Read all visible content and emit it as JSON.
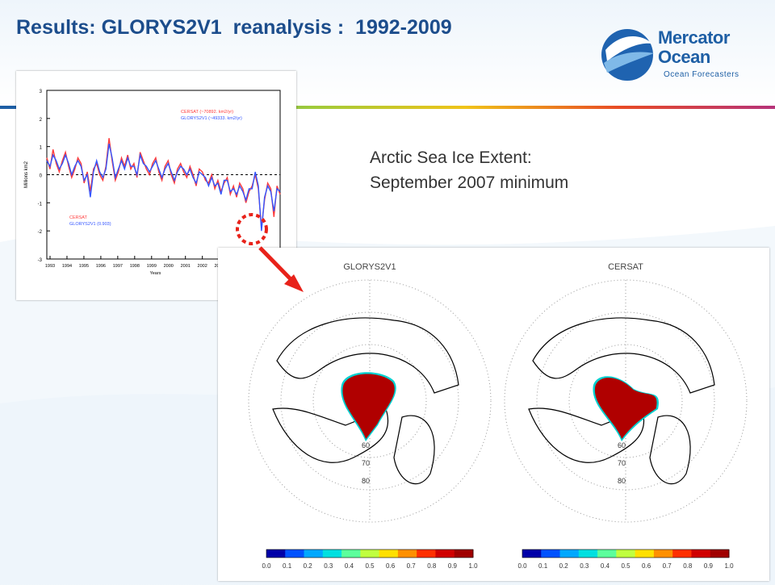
{
  "slide": {
    "title": "Results: GLORYS2V1  reanalysis :  1992-2009",
    "caption_line1": "Arctic Sea Ice Extent:",
    "caption_line2": "September 2007 minimum"
  },
  "logo": {
    "line1": "Mercator",
    "line2": "Ocean",
    "tagline": "Ocean Forecasters"
  },
  "chart_data": [
    {
      "type": "line",
      "ylabel": "Millions km2",
      "xlabel": "Years",
      "ylim": [
        -3,
        3
      ],
      "yticks": [
        -3,
        -2,
        -1,
        0,
        1,
        2,
        3
      ],
      "xticks": [
        "1993",
        "1994",
        "1995",
        "1996",
        "1997",
        "1998",
        "1999",
        "2000",
        "2001",
        "2002",
        "2003",
        "2004",
        "2005",
        "200"
      ],
      "legend_top": [
        "CERSAT (~70892. km2/yr)",
        "GLORYS2V1 (~49333. km2/yr)"
      ],
      "legend_bottom": [
        "CERSAT",
        "GLORYS2V1 (0.903)"
      ],
      "series": [
        {
          "name": "CERSAT",
          "color": "#ff3b3b",
          "values": [
            0.6,
            0.2,
            0.9,
            0.4,
            0.1,
            0.5,
            0.8,
            0.3,
            -0.1,
            0.2,
            0.6,
            0.4,
            -0.3,
            0.1,
            -0.6,
            0.2,
            0.4,
            0.0,
            -0.2,
            0.3,
            1.3,
            0.5,
            -0.2,
            0.1,
            0.6,
            0.3,
            0.7,
            0.2,
            0.4,
            -0.1,
            0.8,
            0.5,
            0.2,
            0.0,
            0.4,
            0.6,
            0.1,
            -0.2,
            0.3,
            0.5,
            0.0,
            -0.3,
            0.2,
            0.4,
            0.1,
            -0.1,
            0.3,
            0.0,
            -0.4,
            0.2,
            0.1,
            -0.2,
            -0.3,
            0.0,
            -0.5,
            -0.2,
            -0.6,
            -0.3,
            -0.1,
            -0.7,
            -0.4,
            -0.8,
            -0.3,
            -0.5,
            -1.0,
            -0.6,
            -0.4,
            0.0,
            -0.5,
            -1.9,
            -0.9,
            -0.3,
            -0.5,
            -1.5,
            -0.4,
            -0.7
          ]
        },
        {
          "name": "GLORYS2V1",
          "color": "#3355ff",
          "values": [
            0.5,
            0.3,
            0.7,
            0.5,
            0.2,
            0.4,
            0.7,
            0.4,
            0.0,
            0.3,
            0.5,
            0.3,
            -0.2,
            0.0,
            -0.8,
            0.1,
            0.5,
            0.1,
            -0.1,
            0.2,
            1.1,
            0.6,
            -0.1,
            0.2,
            0.5,
            0.2,
            0.6,
            0.3,
            0.3,
            0.0,
            0.7,
            0.4,
            0.3,
            0.1,
            0.3,
            0.5,
            0.2,
            -0.1,
            0.2,
            0.4,
            0.1,
            -0.2,
            0.1,
            0.3,
            0.2,
            0.0,
            0.2,
            -0.1,
            -0.3,
            0.1,
            0.0,
            -0.1,
            -0.4,
            -0.1,
            -0.4,
            -0.3,
            -0.7,
            -0.2,
            -0.2,
            -0.6,
            -0.5,
            -0.7,
            -0.4,
            -0.6,
            -0.9,
            -0.5,
            -0.5,
            0.1,
            -0.4,
            -2.0,
            -0.8,
            -0.4,
            -0.6,
            -1.3,
            -0.5,
            -0.6
          ]
        }
      ]
    },
    {
      "type": "heatmap",
      "panels": [
        "GLORYS2V1",
        "CERSAT"
      ],
      "colorbar_ticks": [
        "0.0",
        "0.1",
        "0.2",
        "0.3",
        "0.4",
        "0.5",
        "0.6",
        "0.7",
        "0.8",
        "0.9",
        "1.0"
      ],
      "colorbar_colors": [
        "#0000a8",
        "#0052ff",
        "#00a8ff",
        "#00e0e0",
        "#5cff9c",
        "#c0ff40",
        "#ffe000",
        "#ff9000",
        "#ff3000",
        "#d00000",
        "#a00000"
      ],
      "lat_labels": [
        "60",
        "70",
        "80"
      ]
    }
  ]
}
